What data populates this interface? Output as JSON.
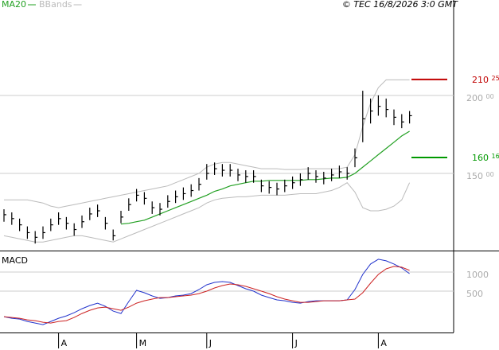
{
  "chart_data": [
    {
      "type": "ohlc",
      "credit": "© TEC 16/8/2026 3:0 GMT",
      "categories": [
        null,
        null,
        null,
        null,
        null,
        null,
        null,
        "A",
        null,
        null,
        null,
        null,
        null,
        null,
        null,
        null,
        null,
        "M",
        null,
        null,
        null,
        null,
        null,
        null,
        null,
        null,
        "J",
        null,
        null,
        null,
        null,
        null,
        null,
        null,
        null,
        null,
        null,
        "J",
        null,
        null,
        null,
        null,
        null,
        null,
        null,
        null,
        null,
        null,
        "A",
        null,
        null,
        null,
        null
      ],
      "high": [
        127,
        125,
        121,
        116,
        113,
        116,
        121,
        125,
        122,
        118,
        123,
        128,
        130,
        122,
        114,
        126,
        134,
        140,
        138,
        132,
        131,
        136,
        139,
        141,
        143,
        147,
        156,
        157,
        156,
        156,
        153,
        152,
        152,
        146,
        145,
        144,
        146,
        148,
        150,
        154,
        152,
        151,
        153,
        155,
        154,
        166,
        203,
        198,
        200,
        198,
        191,
        188,
        190
      ],
      "low": [
        119,
        117,
        113,
        108,
        105,
        108,
        113,
        117,
        114,
        110,
        115,
        120,
        122,
        114,
        107,
        118,
        126,
        132,
        130,
        124,
        123,
        128,
        131,
        133,
        135,
        139,
        146,
        149,
        148,
        148,
        145,
        144,
        144,
        138,
        137,
        136,
        138,
        140,
        142,
        146,
        144,
        143,
        145,
        147,
        146,
        154,
        170,
        182,
        187,
        186,
        181,
        179,
        182
      ],
      "close": [
        123.5,
        121,
        117,
        112,
        109,
        112,
        117,
        121,
        118,
        114,
        119,
        124,
        126,
        118,
        110,
        122,
        130,
        136,
        134,
        128,
        127,
        132,
        135,
        137,
        139,
        143,
        150,
        153,
        152,
        152,
        149,
        148,
        148,
        142,
        141,
        140,
        142,
        144,
        146,
        150,
        148,
        147,
        149,
        151,
        150,
        160,
        185,
        190,
        193,
        191,
        186,
        183,
        187
      ],
      "color": "#000000",
      "series": [
        {
          "name": "MA20",
          "color": "#22a022",
          "values": [
            null,
            null,
            null,
            null,
            null,
            null,
            null,
            null,
            null,
            null,
            null,
            null,
            null,
            null,
            null,
            117.5,
            118,
            119,
            120,
            122,
            124,
            126,
            128,
            130,
            132,
            134,
            136,
            138.5,
            140,
            142,
            143,
            144,
            145,
            145,
            145.5,
            145.5,
            145.5,
            145.5,
            145.5,
            146,
            146,
            146.5,
            147,
            147,
            147.5,
            150,
            154,
            158,
            162,
            166,
            170,
            174,
            177
          ]
        },
        {
          "name": "BBands",
          "color": "#bbbbbb",
          "upper": [
            133,
            133,
            133,
            133,
            132,
            131,
            129,
            128,
            129,
            130,
            131,
            132,
            133,
            134,
            135,
            136,
            137,
            138,
            139,
            140,
            141,
            142,
            144,
            146,
            148,
            150,
            154,
            156,
            157,
            157,
            156,
            155,
            154,
            153,
            153,
            153,
            152.5,
            152.5,
            152.5,
            153,
            153,
            153,
            153,
            153,
            154,
            162,
            180,
            195,
            205,
            210,
            210,
            210,
            210
          ],
          "lower": [
            110,
            109,
            108,
            107,
            106,
            106,
            107,
            108,
            109,
            110,
            110,
            109,
            108,
            107,
            106,
            108,
            110,
            112,
            114,
            116,
            118,
            120,
            122,
            124,
            126,
            128,
            131,
            133,
            134,
            134.5,
            135,
            135,
            135.5,
            136,
            136,
            136,
            136,
            136.5,
            137,
            137,
            137,
            138,
            139,
            141,
            144,
            138,
            128,
            126,
            126,
            127,
            129,
            133,
            144
          ]
        }
      ],
      "annotations": [
        {
          "value": 210.25,
          "label": "210 25",
          "color": "#c00000"
        },
        {
          "value": 160.16,
          "label": "160 16",
          "color": "#009900"
        }
      ],
      "ylim": [
        100.5,
        261.2
      ],
      "yticks": [
        {
          "value": 150,
          "label": "150 00"
        },
        {
          "value": 200,
          "label": "200 00"
        }
      ],
      "grid": true
    },
    {
      "type": "line",
      "title": "MACD",
      "series": [
        {
          "color": "#2233cc",
          "values": [
            -167,
            -208,
            -229,
            -292,
            -333,
            -375,
            -292,
            -208,
            -146,
            -62,
            42,
            125,
            187,
            104,
            -21,
            -83,
            229,
            521,
            458,
            375,
            312,
            333,
            375,
            396,
            437,
            541,
            667,
            729,
            750,
            729,
            646,
            562,
            500,
            396,
            333,
            271,
            250,
            208,
            187,
            229,
            250,
            250,
            250,
            250,
            271,
            541,
            937,
            1208,
            1333,
            1292,
            1208,
            1104,
            958
          ]
        },
        {
          "color": "#cc2222",
          "values": [
            -167,
            -187,
            -208,
            -250,
            -271,
            -312,
            -333,
            -292,
            -271,
            -187,
            -83,
            0,
            62,
            83,
            42,
            0,
            83,
            187,
            250,
            292,
            333,
            333,
            354,
            375,
            396,
            437,
            500,
            583,
            646,
            687,
            667,
            625,
            562,
            500,
            437,
            354,
            292,
            250,
            208,
            208,
            229,
            250,
            250,
            250,
            271,
            292,
            458,
            708,
            937,
            1083,
            1146,
            1125,
            1042
          ]
        }
      ],
      "ylim": [
        -580,
        1560
      ],
      "yticks": [
        500,
        1000
      ],
      "grid": true
    }
  ]
}
